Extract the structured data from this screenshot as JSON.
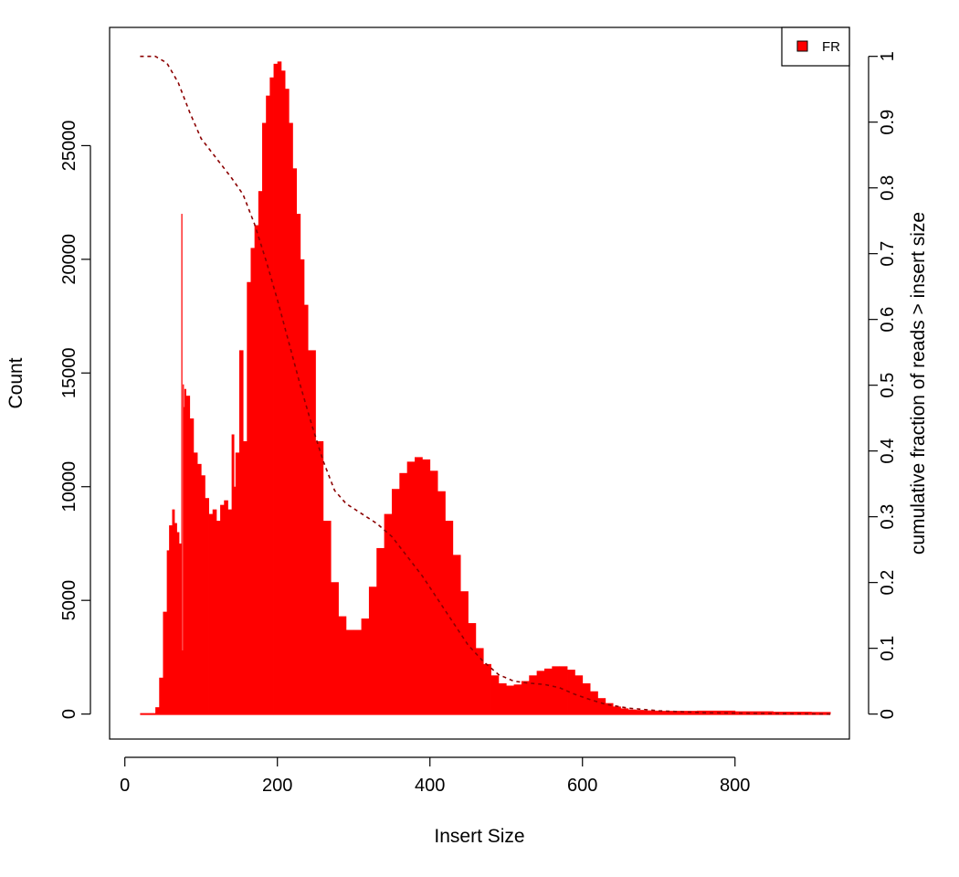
{
  "chart_data": {
    "type": "area",
    "xlabel": "Insert Size",
    "ylabel": "Count",
    "y2label": "cumulative fraction of reads > insert size",
    "xlim": [
      -20,
      950
    ],
    "ylim": [
      -1100,
      30200
    ],
    "y2lim": [
      -0.038,
      1.044
    ],
    "xticks": [
      0,
      200,
      400,
      600,
      800
    ],
    "yticks": [
      0,
      5000,
      10000,
      15000,
      20000,
      25000
    ],
    "y2ticks": [
      0,
      0.1,
      0.2,
      0.3,
      0.4,
      0.5,
      0.6,
      0.7,
      0.8,
      0.9,
      1
    ],
    "legend": {
      "position": "top-right",
      "entries": [
        {
          "name": "FR",
          "color": "#ff0000"
        }
      ]
    },
    "grid": false,
    "colors": {
      "histogram": "#ff0000",
      "cumulative": "#8b0000"
    },
    "series": [
      {
        "name": "FR",
        "kind": "histogram",
        "x": [
          20,
          35,
          40,
          45,
          50,
          55,
          58,
          62,
          65,
          68,
          71,
          74,
          75,
          76,
          77,
          78,
          80,
          85,
          90,
          95,
          100,
          105,
          110,
          115,
          120,
          125,
          130,
          135,
          140,
          143,
          145,
          150,
          155,
          160,
          165,
          170,
          175,
          180,
          185,
          190,
          195,
          200,
          205,
          210,
          215,
          220,
          225,
          230,
          235,
          240,
          250,
          260,
          270,
          280,
          290,
          300,
          310,
          320,
          330,
          340,
          350,
          360,
          370,
          380,
          390,
          400,
          410,
          420,
          430,
          440,
          450,
          460,
          470,
          480,
          490,
          500,
          510,
          520,
          530,
          540,
          550,
          560,
          570,
          580,
          590,
          600,
          610,
          620,
          630,
          640,
          650,
          660,
          670,
          680,
          690,
          700,
          750,
          800,
          850,
          900,
          925
        ],
        "y": [
          0,
          0,
          300,
          1600,
          4500,
          7200,
          8300,
          9000,
          8400,
          8000,
          7500,
          22000,
          2800,
          14500,
          13500,
          14300,
          14000,
          13000,
          11500,
          11000,
          10500,
          9500,
          8800,
          9000,
          8500,
          9200,
          9400,
          9000,
          12300,
          10000,
          11500,
          16000,
          12000,
          19000,
          20500,
          21500,
          23000,
          26000,
          27200,
          28000,
          28600,
          28700,
          28300,
          27500,
          26000,
          24000,
          22000,
          20000,
          18000,
          16000,
          12000,
          8500,
          5800,
          4300,
          3700,
          3700,
          4200,
          5600,
          7300,
          8800,
          9900,
          10600,
          11100,
          11300,
          11200,
          10700,
          9800,
          8500,
          7000,
          5400,
          4000,
          2900,
          2200,
          1700,
          1350,
          1250,
          1300,
          1450,
          1700,
          1900,
          2000,
          2100,
          2100,
          1950,
          1700,
          1350,
          1000,
          700,
          480,
          330,
          250,
          200,
          180,
          160,
          150,
          140,
          150,
          120,
          100,
          90,
          80
        ]
      },
      {
        "name": "cumulative",
        "kind": "line",
        "x": [
          20,
          40,
          55,
          70,
          85,
          100,
          120,
          140,
          155,
          170,
          185,
          200,
          215,
          230,
          245,
          260,
          275,
          290,
          310,
          330,
          350,
          370,
          390,
          410,
          430,
          450,
          470,
          490,
          510,
          530,
          550,
          570,
          590,
          610,
          630,
          660,
          700,
          760,
          850,
          925
        ],
        "y": [
          1.0,
          1.0,
          0.99,
          0.96,
          0.915,
          0.875,
          0.845,
          0.815,
          0.79,
          0.745,
          0.69,
          0.63,
          0.565,
          0.5,
          0.44,
          0.385,
          0.34,
          0.32,
          0.305,
          0.29,
          0.27,
          0.24,
          0.21,
          0.175,
          0.14,
          0.105,
          0.08,
          0.06,
          0.05,
          0.047,
          0.045,
          0.04,
          0.03,
          0.022,
          0.015,
          0.009,
          0.005,
          0.002,
          0.0008,
          0.0
        ]
      }
    ]
  }
}
